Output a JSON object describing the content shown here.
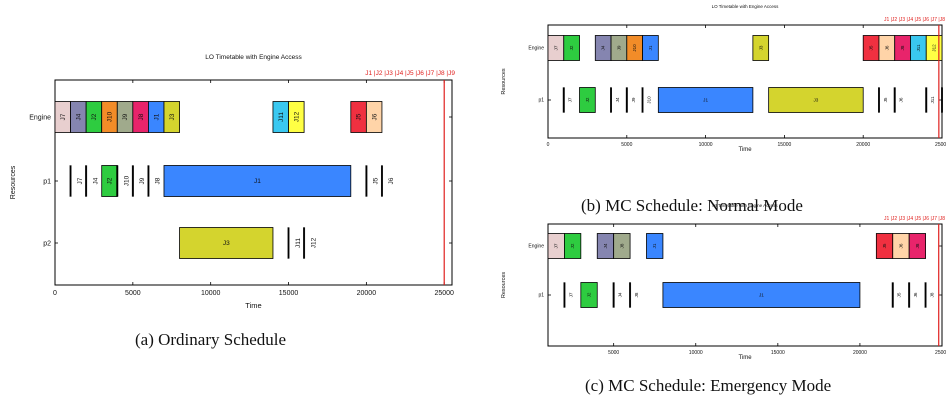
{
  "figure": {
    "captions": {
      "a": "(a)  Ordinary Schedule",
      "b": "(b)  MC Schedule: Normal Mode",
      "c": "(c)  MC Schedule: Emergency Mode"
    }
  },
  "chart_data": [
    {
      "id": "a",
      "type": "gantt",
      "title": "LO Timetable with Engine Access",
      "xlabel": "Time",
      "ylabel": "Resources",
      "xlim": [
        0,
        25500
      ],
      "xticks": [
        0,
        5000,
        10000,
        15000,
        20000,
        25000
      ],
      "rows": [
        "Engine",
        "p1",
        "p2"
      ],
      "deadline": {
        "x": 25000,
        "labels": [
          "J1",
          "J2",
          "J3",
          "J4",
          "J5",
          "J6",
          "J7",
          "J8",
          "J9"
        ],
        "color": "#e0201e"
      },
      "bars": [
        {
          "row": "Engine",
          "label": "J7",
          "start": 0,
          "end": 1000,
          "color": "#e8cfcf"
        },
        {
          "row": "Engine",
          "label": "J4",
          "start": 1000,
          "end": 2000,
          "color": "#8585b0"
        },
        {
          "row": "Engine",
          "label": "J2",
          "start": 2000,
          "end": 3000,
          "color": "#2ecc40"
        },
        {
          "row": "Engine",
          "label": "J10",
          "start": 3000,
          "end": 4000,
          "color": "#f28c28"
        },
        {
          "row": "Engine",
          "label": "J9",
          "start": 4000,
          "end": 5000,
          "color": "#a0aa8c"
        },
        {
          "row": "Engine",
          "label": "J8",
          "start": 5000,
          "end": 6000,
          "color": "#e8246b"
        },
        {
          "row": "Engine",
          "label": "J1",
          "start": 6000,
          "end": 7000,
          "color": "#3a86ff"
        },
        {
          "row": "Engine",
          "label": "J3",
          "start": 7000,
          "end": 8000,
          "color": "#d4d42e"
        },
        {
          "row": "Engine",
          "label": "J11",
          "start": 14000,
          "end": 15000,
          "color": "#3ac8f0"
        },
        {
          "row": "Engine",
          "label": "J12",
          "start": 15000,
          "end": 16000,
          "color": "#ffff44"
        },
        {
          "row": "Engine",
          "label": "J5",
          "start": 19000,
          "end": 20000,
          "color": "#f03040"
        },
        {
          "row": "Engine",
          "label": "J6",
          "start": 20000,
          "end": 21000,
          "color": "#ffd4a8"
        },
        {
          "row": "p1",
          "label": "J7",
          "start": 1000,
          "end": 1000,
          "color": "#000000"
        },
        {
          "row": "p1",
          "label": "J4",
          "start": 2000,
          "end": 2000,
          "color": "#000000"
        },
        {
          "row": "p1",
          "label": "J2",
          "start": 3000,
          "end": 4000,
          "color": "#2ecc40"
        },
        {
          "row": "p1",
          "label": "J10",
          "start": 4000,
          "end": 4000,
          "color": "#000000"
        },
        {
          "row": "p1",
          "label": "J9",
          "start": 5000,
          "end": 5000,
          "color": "#000000"
        },
        {
          "row": "p1",
          "label": "J8",
          "start": 6000,
          "end": 6000,
          "color": "#000000"
        },
        {
          "row": "p1",
          "label": "J1",
          "start": 7000,
          "end": 19000,
          "color": "#3a86ff"
        },
        {
          "row": "p1",
          "label": "J5",
          "start": 20000,
          "end": 20000,
          "color": "#000000"
        },
        {
          "row": "p1",
          "label": "J6",
          "start": 21000,
          "end": 21000,
          "color": "#000000"
        },
        {
          "row": "p2",
          "label": "J3",
          "start": 8000,
          "end": 14000,
          "color": "#d4d42e"
        },
        {
          "row": "p2",
          "label": "J11",
          "start": 15000,
          "end": 15000,
          "color": "#000000"
        },
        {
          "row": "p2",
          "label": "J12",
          "start": 16000,
          "end": 16000,
          "color": "#000000"
        }
      ]
    },
    {
      "id": "b",
      "type": "gantt",
      "title": "LO Timetable with Engine Access",
      "xlabel": "Time",
      "ylabel": "Resources",
      "xlim": [
        0,
        25000
      ],
      "xticks": [
        0,
        5000,
        10000,
        15000,
        20000,
        25000
      ],
      "rows": [
        "Engine",
        "p1"
      ],
      "deadline": {
        "x": 24800,
        "labels": [
          "J1",
          "J2",
          "J3",
          "J4",
          "J5",
          "J6",
          "J7",
          "J8"
        ],
        "color": "#e0201e"
      },
      "bars": [
        {
          "row": "Engine",
          "label": "J7",
          "start": 0,
          "end": 1000,
          "color": "#e8cfcf"
        },
        {
          "row": "Engine",
          "label": "J2",
          "start": 1000,
          "end": 2000,
          "color": "#2ecc40"
        },
        {
          "row": "Engine",
          "label": "J4",
          "start": 3000,
          "end": 4000,
          "color": "#8585b0"
        },
        {
          "row": "Engine",
          "label": "J9",
          "start": 4000,
          "end": 5000,
          "color": "#a0aa8c"
        },
        {
          "row": "Engine",
          "label": "J10",
          "start": 5000,
          "end": 6000,
          "color": "#f28c28"
        },
        {
          "row": "Engine",
          "label": "J1",
          "start": 6000,
          "end": 7000,
          "color": "#3a86ff"
        },
        {
          "row": "Engine",
          "label": "J3",
          "start": 13000,
          "end": 14000,
          "color": "#d4d42e"
        },
        {
          "row": "Engine",
          "label": "J5",
          "start": 20000,
          "end": 21000,
          "color": "#f03040"
        },
        {
          "row": "Engine",
          "label": "J6",
          "start": 21000,
          "end": 22000,
          "color": "#ffd4a8"
        },
        {
          "row": "Engine",
          "label": "J8",
          "start": 22000,
          "end": 23000,
          "color": "#e8246b"
        },
        {
          "row": "Engine",
          "label": "J11",
          "start": 23000,
          "end": 24000,
          "color": "#3ac8f0"
        },
        {
          "row": "Engine",
          "label": "J12",
          "start": 24000,
          "end": 25000,
          "color": "#ffff44"
        },
        {
          "row": "p1",
          "label": "J7",
          "start": 1000,
          "end": 1000,
          "color": "#000000"
        },
        {
          "row": "p1",
          "label": "J2",
          "start": 2000,
          "end": 3000,
          "color": "#2ecc40"
        },
        {
          "row": "p1",
          "label": "J4",
          "start": 4000,
          "end": 4000,
          "color": "#000000"
        },
        {
          "row": "p1",
          "label": "J9",
          "start": 5000,
          "end": 5000,
          "color": "#000000"
        },
        {
          "row": "p1",
          "label": "J10",
          "start": 6000,
          "end": 6000,
          "color": "#000000"
        },
        {
          "row": "p1",
          "label": "J1",
          "start": 7000,
          "end": 13000,
          "color": "#3a86ff"
        },
        {
          "row": "p1",
          "label": "J3",
          "start": 14000,
          "end": 20000,
          "color": "#d4d42e"
        },
        {
          "row": "p1",
          "label": "J5",
          "start": 21000,
          "end": 21000,
          "color": "#000000"
        },
        {
          "row": "p1",
          "label": "J6",
          "start": 22000,
          "end": 22000,
          "color": "#000000"
        },
        {
          "row": "p1",
          "label": "J11",
          "start": 24000,
          "end": 24000,
          "color": "#000000"
        },
        {
          "row": "p1",
          "label": "J12",
          "start": 25000,
          "end": 25000,
          "color": "#000000"
        }
      ]
    },
    {
      "id": "c",
      "type": "gantt",
      "title": "HI Timetable with Engine Access",
      "xlabel": "Time",
      "ylabel": "Resources",
      "xlim": [
        1000,
        25000
      ],
      "xticks": [
        5000,
        10000,
        15000,
        20000,
        25000
      ],
      "rows": [
        "Engine",
        "p1"
      ],
      "deadline": {
        "x": 24800,
        "labels": [
          "J1",
          "J2",
          "J3",
          "J4",
          "J5",
          "J6",
          "J7",
          "J8"
        ],
        "color": "#e0201e"
      },
      "bars": [
        {
          "row": "Engine",
          "label": "J7",
          "start": 1000,
          "end": 2000,
          "color": "#e8cfcf"
        },
        {
          "row": "Engine",
          "label": "J2",
          "start": 2000,
          "end": 3000,
          "color": "#2ecc40"
        },
        {
          "row": "Engine",
          "label": "J4",
          "start": 4000,
          "end": 5000,
          "color": "#8585b0"
        },
        {
          "row": "Engine",
          "label": "J8",
          "start": 5000,
          "end": 6000,
          "color": "#a0aa8c"
        },
        {
          "row": "Engine",
          "label": "J1",
          "start": 7000,
          "end": 8000,
          "color": "#3a86ff"
        },
        {
          "row": "Engine",
          "label": "J5",
          "start": 21000,
          "end": 22000,
          "color": "#f03040"
        },
        {
          "row": "Engine",
          "label": "J6",
          "start": 22000,
          "end": 23000,
          "color": "#ffd4a8"
        },
        {
          "row": "Engine",
          "label": "J8",
          "start": 23000,
          "end": 24000,
          "color": "#e8246b"
        },
        {
          "row": "p1",
          "label": "J7",
          "start": 2000,
          "end": 2000,
          "color": "#000000"
        },
        {
          "row": "p1",
          "label": "J2",
          "start": 3000,
          "end": 4000,
          "color": "#2ecc40"
        },
        {
          "row": "p1",
          "label": "J4",
          "start": 5000,
          "end": 5000,
          "color": "#000000"
        },
        {
          "row": "p1",
          "label": "J8",
          "start": 6000,
          "end": 6000,
          "color": "#000000"
        },
        {
          "row": "p1",
          "label": "J1",
          "start": 8000,
          "end": 20000,
          "color": "#3a86ff"
        },
        {
          "row": "p1",
          "label": "J5",
          "start": 22000,
          "end": 22000,
          "color": "#000000"
        },
        {
          "row": "p1",
          "label": "J6",
          "start": 23000,
          "end": 23000,
          "color": "#000000"
        },
        {
          "row": "p1",
          "label": "J8",
          "start": 24000,
          "end": 24000,
          "color": "#000000"
        }
      ]
    }
  ]
}
